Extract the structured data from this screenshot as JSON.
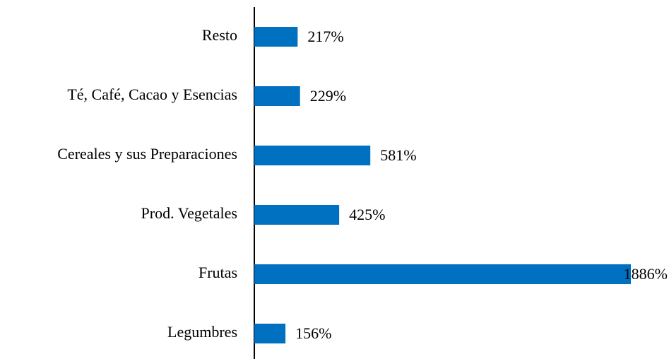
{
  "chart_data": {
    "type": "hbar",
    "categories": [
      "Resto",
      "Té, Café, Cacao y Esencias",
      "Cereales y sus Preparaciones",
      "Prod. Vegetales",
      "Frutas",
      "Legumbres"
    ],
    "values": [
      217,
      229,
      581,
      425,
      1886,
      156
    ],
    "value_labels": [
      "217%",
      "229%",
      "581%",
      "425%",
      "1886%",
      "156%"
    ],
    "color": "#0070c0"
  }
}
